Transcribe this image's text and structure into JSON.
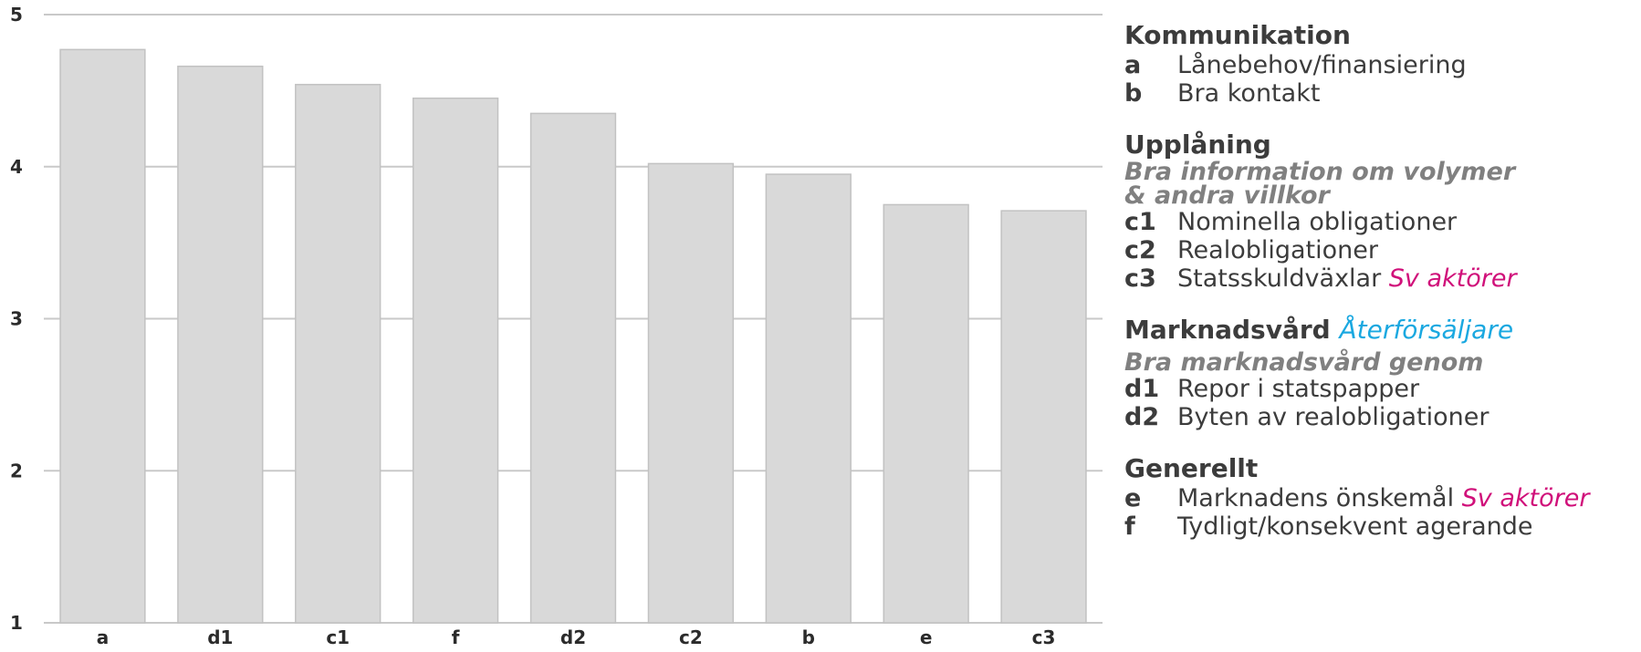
{
  "chart_data": {
    "type": "bar",
    "categories": [
      "a",
      "d1",
      "c1",
      "f",
      "d2",
      "c2",
      "b",
      "e",
      "c3"
    ],
    "values": [
      4.77,
      4.66,
      4.54,
      4.45,
      4.35,
      4.02,
      3.95,
      3.75,
      3.71
    ],
    "title": "",
    "xlabel": "",
    "ylabel": "",
    "ylim": [
      1,
      5
    ],
    "yticks": [
      "1",
      "2",
      "3",
      "4",
      "5"
    ],
    "grid": true,
    "bar_color": "#d9d9d9"
  },
  "legend": {
    "sections": [
      {
        "heading": "Kommunikation",
        "heading_accent": "",
        "sub": "",
        "items": [
          {
            "code": "a",
            "label": "Lånebehov/finansiering",
            "accent": ""
          },
          {
            "code": "b",
            "label": "Bra kontakt",
            "accent": ""
          }
        ]
      },
      {
        "heading": "Upplåning",
        "heading_accent": "",
        "sub": "Bra information om volymer & andra villkor",
        "items": [
          {
            "code": "c1",
            "label": "Nominella obligationer",
            "accent": ""
          },
          {
            "code": "c2",
            "label": "Realobligationer",
            "accent": ""
          },
          {
            "code": "c3",
            "label": "Statsskuldväxlar",
            "accent": "Sv aktörer"
          }
        ]
      },
      {
        "heading": "Marknadsvård",
        "heading_accent": "Återförsäljare",
        "sub": "Bra marknadsvård genom",
        "items": [
          {
            "code": "d1",
            "label": "Repor i statspapper",
            "accent": ""
          },
          {
            "code": "d2",
            "label": "Byten av realobligationer",
            "accent": ""
          }
        ]
      },
      {
        "heading": "Generellt",
        "heading_accent": "",
        "sub": "",
        "items": [
          {
            "code": "e",
            "label": "Marknadens önskemål",
            "accent": "Sv aktörer"
          },
          {
            "code": "f",
            "label": "Tydligt/konsekvent agerande",
            "accent": ""
          }
        ]
      }
    ],
    "colors": {
      "accent_magenta": "#d0107a",
      "accent_cyan": "#1aa8e0",
      "sub_gray": "#808080"
    }
  }
}
